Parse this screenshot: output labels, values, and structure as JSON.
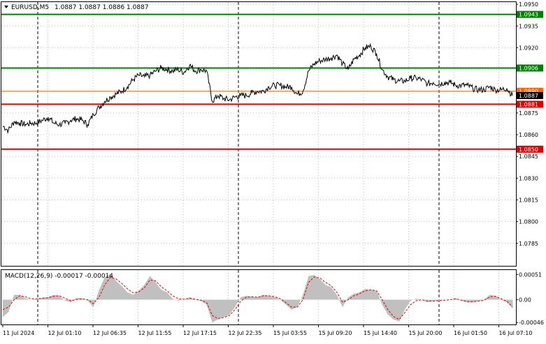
{
  "header": {
    "symbol": "EURUSD,M5",
    "ohlc": "1.0887 1.0887 1.0886 1.0887"
  },
  "macd_panel": {
    "label": "MACD(12,26,9) -0.00017 -0.00014"
  },
  "chart_data": {
    "type": "line",
    "price_axis": {
      "ylim": [
        1.07695,
        1.09515
      ],
      "ticks": [
        1.095,
        1.0935,
        1.092,
        1.0905,
        1.089,
        1.0875,
        1.086,
        1.0845,
        1.083,
        1.0815,
        1.08,
        1.0785
      ],
      "tick_labels": [
        "1.0950",
        "1.0935",
        "1.0920",
        "1.0905",
        "1.0890",
        "1.0875",
        "1.0860",
        "1.0845",
        "1.0830",
        "1.0815",
        "1.0800",
        "1.0785"
      ]
    },
    "macd_axis": {
      "ylim": [
        -0.0005,
        0.0006
      ],
      "tick_labels": [
        "0.00051",
        "0.00",
        "-0.00046"
      ],
      "ticks": [
        0.00051,
        0,
        -0.00046
      ]
    },
    "x_labels": [
      "11 Jul 2024",
      "12 Jul 01:10",
      "12 Jul 06:35",
      "12 Jul 11:55",
      "12 Jul 17:15",
      "12 Jul 22:35",
      "15 Jul 03:55",
      "15 Jul 09:20",
      "15 Jul 14:40",
      "15 Jul 20:00",
      "16 Jul 01:50",
      "16 Jul 07:10"
    ],
    "session_dividers": [
      "12 Jul 2024",
      "13 Jul 2024",
      "15 Jul 2024",
      "16 Jul 2024"
    ],
    "levels": [
      {
        "value": 1.0943,
        "label": "1.0943",
        "color": "#008000",
        "style": "thick"
      },
      {
        "value": 1.0906,
        "label": "1.0906",
        "color": "#008000",
        "style": "thick"
      },
      {
        "value": 1.089,
        "label": "1.0890",
        "color": "#ff6600",
        "style": "thin"
      },
      {
        "value": 1.0881,
        "label": "1.0881",
        "color": "#e00000",
        "style": "thick"
      },
      {
        "value": 1.085,
        "label": "1.0850",
        "color": "#e00000",
        "style": "thick"
      }
    ],
    "current_price": {
      "value": 1.0887,
      "label": "1.0887"
    },
    "price_series": [
      1.0866,
      1.0863,
      1.0869,
      1.0868,
      1.0867,
      1.0868,
      1.0868,
      1.087,
      1.0872,
      1.0868,
      1.0867,
      1.0868,
      1.087,
      1.0871,
      1.087,
      1.0867,
      1.0874,
      1.0879,
      1.0883,
      1.0886,
      1.0888,
      1.089,
      1.0893,
      1.0898,
      1.0901,
      1.09,
      1.0901,
      1.0904,
      1.0906,
      1.0905,
      1.0904,
      1.0905,
      1.0903,
      1.0908,
      1.0904,
      1.0905,
      1.0904,
      1.0883,
      1.0887,
      1.0885,
      1.0884,
      1.0886,
      1.0887,
      1.0887,
      1.0889,
      1.089,
      1.089,
      1.0893,
      1.0894,
      1.0894,
      1.0893,
      1.0893,
      1.0888,
      1.089,
      1.0904,
      1.0909,
      1.0911,
      1.0912,
      1.0913,
      1.0915,
      1.0909,
      1.0905,
      1.0912,
      1.0915,
      1.092,
      1.0921,
      1.0916,
      1.0905,
      1.09,
      1.0898,
      1.0897,
      1.0897,
      1.0899,
      1.0899,
      1.0898,
      1.0895,
      1.0896,
      1.0895,
      1.0896,
      1.0896,
      1.0894,
      1.0894,
      1.0894,
      1.0892,
      1.0891,
      1.0891,
      1.0893,
      1.0891,
      1.0891,
      1.0892,
      1.0887
    ],
    "macd_hist": [
      -0.00035,
      -0.00025,
      0.0001,
      0.0001,
      3e-05,
      0.0,
      2e-05,
      4e-05,
      5e-05,
      0.0001,
      8e-05,
      -2e-05,
      -5e-05,
      4e-05,
      3e-05,
      -2e-05,
      -0.00015,
      0.0002,
      0.00045,
      0.00052,
      0.00038,
      0.00028,
      0.00015,
      0.0001,
      0.00018,
      0.0003,
      0.00048,
      0.00035,
      0.0002,
      0.00015,
      2e-05,
      -2e-05,
      0.0,
      5e-05,
      0.0,
      -2e-05,
      -0.0001,
      -0.00046,
      -0.0004,
      -0.00035,
      -0.0003,
      -0.00015,
      5e-05,
      8e-05,
      6e-05,
      5e-05,
      0.0001,
      8e-05,
      5e-05,
      0.0,
      -0.0001,
      -0.0002,
      -0.00015,
      0.0001,
      0.00048,
      0.0005,
      0.00042,
      0.0003,
      0.00025,
      0.0001,
      -0.00015,
      5e-05,
      0.00012,
      0.00015,
      0.00022,
      0.0002,
      0.00018,
      -0.0001,
      -0.0003,
      -0.0004,
      -0.00044,
      -0.0002,
      -2e-05,
      2e-05,
      0.0,
      -5e-05,
      -3e-05,
      -2e-05,
      0.0,
      0.0,
      3e-05,
      -2e-05,
      -5e-05,
      -5e-05,
      -3e-05,
      0.0,
      0.0001,
      8e-05,
      0.0,
      -5e-05,
      -0.00017
    ],
    "macd_signal": [
      -0.0002,
      -0.00015,
      0.0,
      8e-05,
      6e-05,
      2e-05,
      2e-05,
      3e-05,
      4e-05,
      7e-05,
      8e-05,
      3e-05,
      -2e-05,
      0.0,
      2e-05,
      0.0,
      -8e-05,
      5e-05,
      0.0003,
      0.00045,
      0.00042,
      0.00033,
      0.00022,
      0.00014,
      0.00016,
      0.00024,
      0.0004,
      0.00038,
      0.00026,
      0.00018,
      8e-05,
      2e-05,
      1e-05,
      3e-05,
      1e-05,
      -1e-05,
      -6e-05,
      -0.00032,
      -0.00038,
      -0.00036,
      -0.00032,
      -0.0002,
      -3e-05,
      5e-05,
      6e-05,
      5e-05,
      8e-05,
      8e-05,
      6e-05,
      2e-05,
      -6e-05,
      -0.00015,
      -0.00015,
      0.0,
      0.00035,
      0.00046,
      0.00044,
      0.00035,
      0.00028,
      0.00015,
      -5e-05,
      0.0,
      8e-05,
      0.00012,
      0.00018,
      0.0002,
      0.00018,
      0.0,
      -0.0002,
      -0.00034,
      -0.0004,
      -0.00026,
      -0.0001,
      -2e-05,
      0.0,
      -3e-05,
      -3e-05,
      -2e-05,
      -1e-05,
      0.0,
      2e-05,
      -1e-05,
      -4e-05,
      -4e-05,
      -3e-05,
      -1e-05,
      6e-05,
      7e-05,
      2e-05,
      -3e-05,
      -0.00014
    ]
  },
  "colors": {
    "price_line": "#000000",
    "grid": "#c0c0c0",
    "divider": "#000000",
    "macd_hist": "#c0c0c0",
    "macd_signal": "#e00000",
    "current_price_bg": "#000000",
    "current_price_text": "#ffffff"
  }
}
